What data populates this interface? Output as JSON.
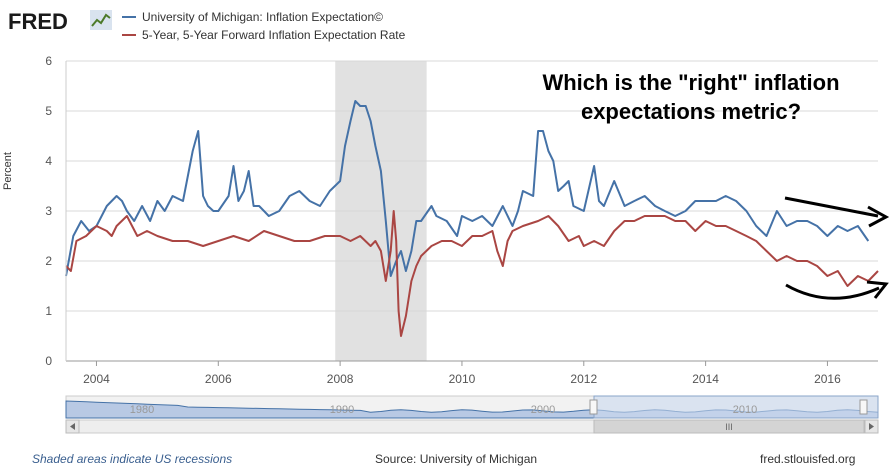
{
  "header": {
    "logo_text": "FRED",
    "logo_icon": "line-chart-icon"
  },
  "legend": [
    {
      "label": "University of Michigan: Inflation Expectation©",
      "color": "#4572a7"
    },
    {
      "label": "5-Year, 5-Year Forward Inflation Expectation Rate",
      "color": "#aa4643"
    }
  ],
  "annotation": "Which is the \"right\" inflation expectations metric?",
  "footer": {
    "note": "Shaded areas indicate US recessions",
    "source": "Source: University of Michigan",
    "site": "fred.stlouisfed.org"
  },
  "navigator": {
    "labels": [
      "1980",
      "1990",
      "2000",
      "2010"
    ],
    "scroll_label": "III"
  },
  "colors": {
    "recession_shade": "#e1e1e1",
    "grid": "#d8d8d8",
    "navigator_fill": "#b8c9e4",
    "navigator_selected": "#c9d9ef"
  },
  "chart_data": {
    "type": "line",
    "ylabel": "Percent",
    "xlim": [
      2003.5,
      2016.83
    ],
    "ylim": [
      0,
      6
    ],
    "x_ticks": [
      2004,
      2006,
      2008,
      2010,
      2012,
      2014,
      2016
    ],
    "y_ticks": [
      0,
      1,
      2,
      3,
      4,
      5,
      6
    ],
    "grid": true,
    "legend_position": "top-left",
    "recessions": [
      [
        2007.92,
        2009.42
      ]
    ],
    "series": [
      {
        "name": "University of Michigan: Inflation Expectation©",
        "color": "#4572a7",
        "x": [
          2003.5,
          2003.62,
          2003.75,
          2003.88,
          2004.0,
          2004.17,
          2004.33,
          2004.42,
          2004.5,
          2004.62,
          2004.75,
          2004.88,
          2005.0,
          2005.12,
          2005.25,
          2005.42,
          2005.58,
          2005.67,
          2005.75,
          2005.83,
          2005.92,
          2006.0,
          2006.17,
          2006.25,
          2006.33,
          2006.42,
          2006.5,
          2006.58,
          2006.67,
          2006.75,
          2006.83,
          2007.0,
          2007.17,
          2007.33,
          2007.5,
          2007.67,
          2007.83,
          2008.0,
          2008.08,
          2008.17,
          2008.25,
          2008.33,
          2008.42,
          2008.5,
          2008.58,
          2008.67,
          2008.75,
          2008.83,
          2008.92,
          2009.0,
          2009.08,
          2009.17,
          2009.25,
          2009.33,
          2009.5,
          2009.58,
          2009.75,
          2009.92,
          2010.0,
          2010.17,
          2010.33,
          2010.5,
          2010.67,
          2010.83,
          2010.92,
          2011.0,
          2011.17,
          2011.25,
          2011.33,
          2011.42,
          2011.5,
          2011.58,
          2011.67,
          2011.75,
          2011.83,
          2012.0,
          2012.17,
          2012.25,
          2012.33,
          2012.5,
          2012.67,
          2012.83,
          2013.0,
          2013.17,
          2013.33,
          2013.5,
          2013.67,
          2013.83,
          2014.0,
          2014.17,
          2014.33,
          2014.5,
          2014.67,
          2014.83,
          2015.0,
          2015.17,
          2015.33,
          2015.5,
          2015.67,
          2015.83,
          2016.0,
          2016.17,
          2016.33,
          2016.5,
          2016.67
        ],
        "values": [
          1.7,
          2.5,
          2.8,
          2.6,
          2.7,
          3.1,
          3.3,
          3.2,
          3.0,
          2.8,
          3.1,
          2.8,
          3.2,
          3.0,
          3.3,
          3.2,
          4.2,
          4.6,
          3.3,
          3.1,
          3.0,
          3.0,
          3.3,
          3.9,
          3.2,
          3.4,
          3.8,
          3.1,
          3.1,
          3.0,
          2.9,
          3.0,
          3.3,
          3.4,
          3.2,
          3.1,
          3.4,
          3.6,
          4.3,
          4.8,
          5.2,
          5.1,
          5.1,
          4.8,
          4.3,
          3.8,
          2.8,
          1.7,
          2.0,
          2.2,
          1.8,
          2.2,
          2.8,
          2.8,
          3.1,
          2.9,
          2.8,
          2.5,
          2.9,
          2.8,
          2.9,
          2.7,
          3.1,
          2.7,
          3.0,
          3.4,
          3.3,
          4.6,
          4.6,
          4.2,
          4.0,
          3.4,
          3.5,
          3.6,
          3.1,
          3.0,
          3.9,
          3.2,
          3.1,
          3.6,
          3.1,
          3.2,
          3.3,
          3.1,
          3.0,
          2.9,
          3.0,
          3.2,
          3.2,
          3.2,
          3.3,
          3.2,
          3.0,
          2.7,
          2.5,
          3.0,
          2.7,
          2.8,
          2.8,
          2.7,
          2.5,
          2.7,
          2.6,
          2.7,
          2.4
        ],
        "style": "solid"
      },
      {
        "name": "5-Year, 5-Year Forward Inflation Expectation Rate",
        "color": "#aa4643",
        "x": [
          2003.5,
          2003.58,
          2003.67,
          2003.83,
          2004.0,
          2004.17,
          2004.25,
          2004.33,
          2004.5,
          2004.67,
          2004.83,
          2005.0,
          2005.25,
          2005.5,
          2005.75,
          2006.0,
          2006.25,
          2006.5,
          2006.75,
          2007.0,
          2007.25,
          2007.5,
          2007.75,
          2008.0,
          2008.17,
          2008.33,
          2008.5,
          2008.58,
          2008.67,
          2008.75,
          2008.83,
          2008.88,
          2008.92,
          2008.96,
          2009.0,
          2009.08,
          2009.17,
          2009.25,
          2009.33,
          2009.5,
          2009.67,
          2009.83,
          2010.0,
          2010.17,
          2010.33,
          2010.5,
          2010.58,
          2010.67,
          2010.75,
          2010.83,
          2011.0,
          2011.25,
          2011.42,
          2011.58,
          2011.75,
          2011.92,
          2012.0,
          2012.17,
          2012.33,
          2012.5,
          2012.67,
          2012.83,
          2013.0,
          2013.17,
          2013.33,
          2013.5,
          2013.67,
          2013.83,
          2014.0,
          2014.17,
          2014.33,
          2014.5,
          2014.67,
          2014.83,
          2015.0,
          2015.17,
          2015.33,
          2015.5,
          2015.67,
          2015.83,
          2016.0,
          2016.17,
          2016.33,
          2016.5,
          2016.67,
          2016.83
        ],
        "values": [
          1.9,
          1.8,
          2.4,
          2.5,
          2.7,
          2.6,
          2.5,
          2.7,
          2.9,
          2.5,
          2.6,
          2.5,
          2.4,
          2.4,
          2.3,
          2.4,
          2.5,
          2.4,
          2.6,
          2.5,
          2.4,
          2.4,
          2.5,
          2.5,
          2.4,
          2.5,
          2.3,
          2.4,
          2.2,
          1.6,
          2.2,
          3.0,
          2.4,
          1.0,
          0.5,
          0.9,
          1.6,
          1.9,
          2.1,
          2.3,
          2.4,
          2.4,
          2.3,
          2.5,
          2.5,
          2.6,
          2.2,
          1.9,
          2.4,
          2.6,
          2.7,
          2.8,
          2.9,
          2.7,
          2.4,
          2.5,
          2.3,
          2.4,
          2.3,
          2.6,
          2.8,
          2.8,
          2.9,
          2.9,
          2.9,
          2.8,
          2.8,
          2.6,
          2.8,
          2.7,
          2.7,
          2.6,
          2.5,
          2.4,
          2.2,
          2.0,
          2.1,
          2.0,
          2.0,
          1.9,
          1.7,
          1.8,
          1.5,
          1.7,
          1.6,
          1.8
        ],
        "style": "solid"
      }
    ]
  }
}
